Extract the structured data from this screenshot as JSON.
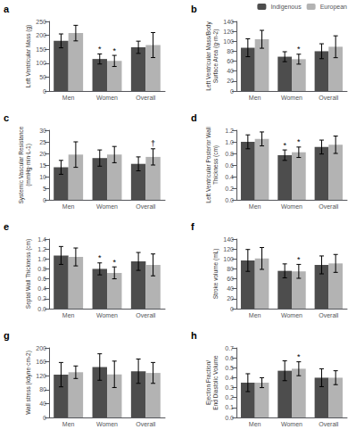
{
  "chart_data": [
    {
      "type": "bar",
      "title": "a",
      "ylabel": "Left Ventricular Mass (g)",
      "categories": [
        "Men",
        "Women",
        "Overall"
      ],
      "series": [
        {
          "name": "Indigenous",
          "color": "#4d4d4d",
          "values": [
            180,
            115,
            157
          ],
          "errors": [
            25,
            18,
            22
          ]
        },
        {
          "name": "European",
          "color": "#b3b3b3",
          "values": [
            208,
            108,
            165
          ],
          "errors": [
            28,
            20,
            45
          ]
        }
      ],
      "ylim": [
        0,
        250
      ],
      "yticks": [
        0,
        50,
        100,
        150,
        200,
        250
      ],
      "grid": false,
      "annotations": [
        {
          "category": "Women",
          "series": "Indigenous",
          "text": "*"
        },
        {
          "category": "Women",
          "series": "European",
          "text": "*"
        }
      ]
    },
    {
      "type": "bar",
      "title": "b",
      "ylabel": "Left Ventricular Mass/Body\nSurface Area (g·m-2)",
      "categories": [
        "Men",
        "Women",
        "Overall"
      ],
      "series": [
        {
          "name": "Indigenous",
          "color": "#4d4d4d",
          "values": [
            87,
            69,
            80
          ],
          "errors": [
            18,
            10,
            15
          ]
        },
        {
          "name": "European",
          "color": "#b3b3b3",
          "values": [
            104,
            64,
            89
          ],
          "errors": [
            18,
            10,
            22
          ]
        }
      ],
      "ylim": [
        0,
        140
      ],
      "yticks": [
        0,
        20,
        40,
        60,
        80,
        100,
        120,
        140
      ],
      "grid": false,
      "legend": "upper right",
      "annotations": [
        {
          "category": "Women",
          "series": "European",
          "text": "*"
        }
      ]
    },
    {
      "type": "bar",
      "title": "c",
      "ylabel": "Systemic Vascular Resistance\n(mmHg·min·L-1)",
      "categories": [
        "Men",
        "Women",
        "Overall"
      ],
      "series": [
        {
          "name": "Indigenous",
          "color": "#4d4d4d",
          "values": [
            14,
            18,
            15.5
          ],
          "errors": [
            3,
            3.5,
            3
          ]
        },
        {
          "name": "European",
          "color": "#b3b3b3",
          "values": [
            19.5,
            19.5,
            18.5
          ],
          "errors": [
            5.5,
            3.5,
            3.5
          ]
        }
      ],
      "ylim": [
        0,
        30
      ],
      "yticks": [
        0,
        5,
        10,
        15,
        20,
        25,
        30
      ],
      "grid": false,
      "annotations": [
        {
          "category": "Overall",
          "series": "European",
          "text": "†"
        }
      ]
    },
    {
      "type": "bar",
      "title": "d",
      "ylabel": "Left Ventricular Posterior Wall\nThickness (cm)",
      "categories": [
        "Men",
        "Women",
        "Overall"
      ],
      "series": [
        {
          "name": "Indigenous",
          "color": "#4d4d4d",
          "values": [
            1.0,
            0.77,
            0.91
          ],
          "errors": [
            0.12,
            0.09,
            0.12
          ]
        },
        {
          "name": "European",
          "color": "#b3b3b3",
          "values": [
            1.05,
            0.82,
            0.95
          ],
          "errors": [
            0.12,
            0.09,
            0.15
          ]
        }
      ],
      "ylim": [
        0,
        1.2
      ],
      "yticks": [
        {
          "value": 0,
          "label": "0.0"
        },
        0.2,
        0.4,
        0.6,
        0.8,
        {
          "value": 1,
          "label": "1.0"
        },
        1.2
      ],
      "grid": false,
      "annotations": [
        {
          "category": "Women",
          "series": "Indigenous",
          "text": "*"
        },
        {
          "category": "Women",
          "series": "European",
          "text": "*"
        }
      ]
    },
    {
      "type": "bar",
      "title": "e",
      "ylabel": "Septal Wall Thickness (cm)",
      "categories": [
        "Men",
        "Women",
        "Overall"
      ],
      "series": [
        {
          "name": "Indigenous",
          "color": "#4d4d4d",
          "values": [
            1.07,
            0.8,
            0.95
          ],
          "errors": [
            0.18,
            0.12,
            0.18
          ]
        },
        {
          "name": "European",
          "color": "#b3b3b3",
          "values": [
            1.04,
            0.72,
            0.88
          ],
          "errors": [
            0.18,
            0.12,
            0.22
          ]
        }
      ],
      "ylim": [
        0,
        1.4
      ],
      "yticks": [
        {
          "value": 0,
          "label": "0.0"
        },
        0.2,
        0.4,
        0.6,
        0.8,
        {
          "value": 1,
          "label": "1.0"
        },
        1.2,
        1.4
      ],
      "grid": false,
      "annotations": [
        {
          "category": "Women",
          "series": "Indigenous",
          "text": "*"
        },
        {
          "category": "Women",
          "series": "European",
          "text": "*"
        }
      ]
    },
    {
      "type": "bar",
      "title": "f",
      "ylabel": "Stroke volume (mL)",
      "categories": [
        "Men",
        "Women",
        "Overall"
      ],
      "series": [
        {
          "name": "Indigenous",
          "color": "#4d4d4d",
          "values": [
            97,
            76,
            88
          ],
          "errors": [
            22,
            14,
            18
          ]
        },
        {
          "name": "European",
          "color": "#b3b3b3",
          "values": [
            101,
            75,
            91
          ],
          "errors": [
            22,
            14,
            18
          ]
        }
      ],
      "ylim": [
        0,
        140
      ],
      "yticks": [
        0,
        20,
        40,
        60,
        80,
        100,
        120,
        140
      ],
      "grid": false,
      "annotations": [
        {
          "category": "Women",
          "series": "European",
          "text": "*"
        }
      ]
    },
    {
      "type": "bar",
      "title": "g",
      "ylabel": "Wall stress (kdyne·cm-2)",
      "categories": [
        "Men",
        "Women",
        "Overall"
      ],
      "series": [
        {
          "name": "Indigenous",
          "color": "#4d4d4d",
          "values": [
            123,
            145,
            133
          ],
          "errors": [
            35,
            38,
            35
          ]
        },
        {
          "name": "European",
          "color": "#b3b3b3",
          "values": [
            130,
            124,
            128
          ],
          "errors": [
            18,
            38,
            30
          ]
        }
      ],
      "ylim": [
        0,
        200
      ],
      "yticks": [
        0,
        40,
        80,
        120,
        160,
        200
      ],
      "grid": false
    },
    {
      "type": "bar",
      "title": "h",
      "ylabel": "Ejection Fraction/\nEnd Diastolic Volume",
      "categories": [
        "Men",
        "Women",
        "Overall"
      ],
      "series": [
        {
          "name": "Indigenous",
          "color": "#4d4d4d",
          "values": [
            0.35,
            0.47,
            0.4
          ],
          "errors": [
            0.09,
            0.1,
            0.09
          ]
        },
        {
          "name": "European",
          "color": "#b3b3b3",
          "values": [
            0.35,
            0.49,
            0.4
          ],
          "errors": [
            0.05,
            0.07,
            0.07
          ]
        }
      ],
      "ylim": [
        0,
        0.7
      ],
      "yticks": [
        {
          "value": 0,
          "label": "0.0"
        },
        0.1,
        0.2,
        0.3,
        0.4,
        0.5,
        0.6,
        0.7
      ],
      "grid": false,
      "annotations": [
        {
          "category": "Women",
          "series": "European",
          "text": "*"
        }
      ]
    }
  ]
}
